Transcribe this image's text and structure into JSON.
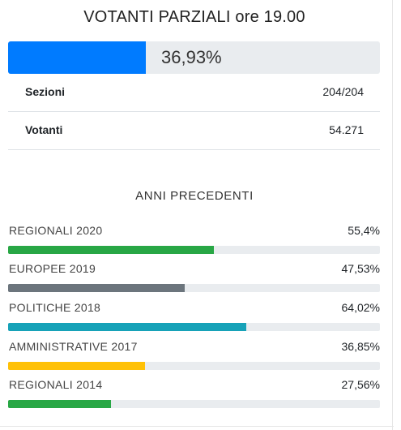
{
  "title": "VOTANTI PARZIALI ore 19.00",
  "turnout": {
    "label": "36,93%",
    "percent": 36.93,
    "color": "#007bff"
  },
  "info_rows": [
    {
      "label": "Sezioni",
      "value": "204/204"
    },
    {
      "label": "Votanti",
      "value": "54.271"
    }
  ],
  "previous": {
    "title": "ANNI PRECEDENTI",
    "items": [
      {
        "label": "REGIONALI 2020",
        "value": "55,4%",
        "percent": 55.4,
        "color": "#28a745"
      },
      {
        "label": "EUROPEE 2019",
        "value": "47,53%",
        "percent": 47.53,
        "color": "#6c757d"
      },
      {
        "label": "POLITICHE 2018",
        "value": "64,02%",
        "percent": 64.02,
        "color": "#17a2b8"
      },
      {
        "label": "AMMINISTRATIVE 2017",
        "value": "36,85%",
        "percent": 36.85,
        "color": "#ffc107"
      },
      {
        "label": "REGIONALI 2014",
        "value": "27,56%",
        "percent": 27.56,
        "color": "#28a745"
      }
    ]
  }
}
